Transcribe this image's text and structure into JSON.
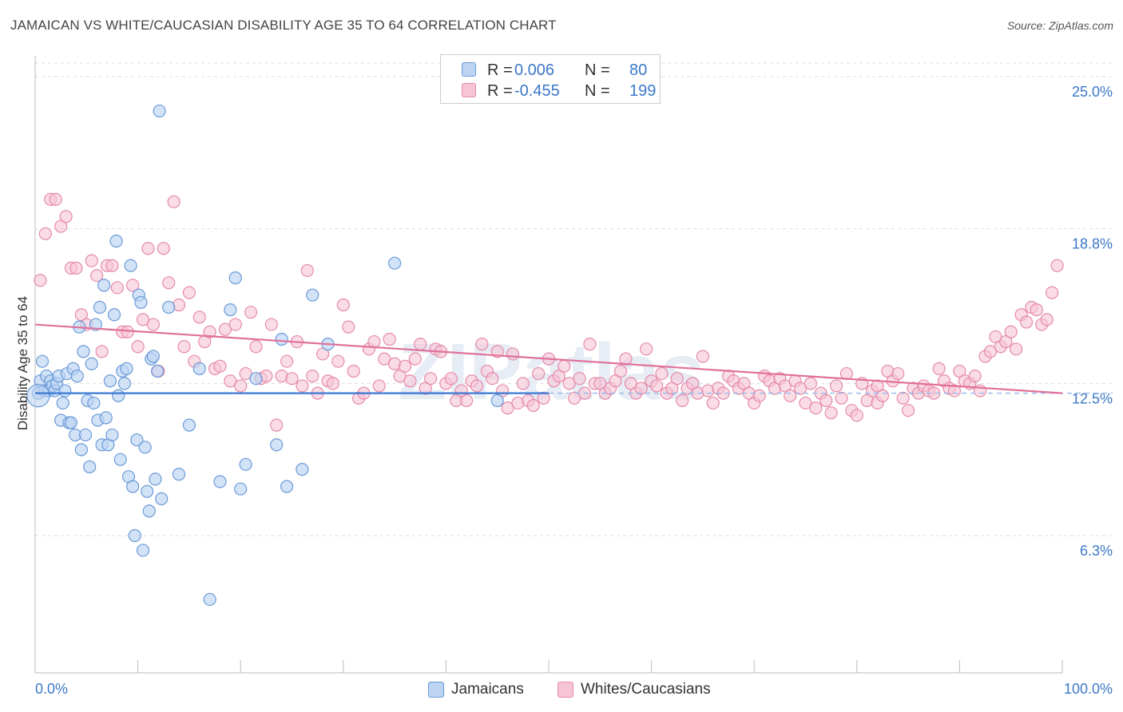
{
  "title": "JAMAICAN VS WHITE/CAUCASIAN DISABILITY AGE 35 TO 64 CORRELATION CHART",
  "source": "Source: ZipAtlas.com",
  "watermark": "ZIPatlas",
  "legend_top": {
    "rows": [
      {
        "r_label": "R =",
        "r_value": "0.006",
        "n_label": "N =",
        "n_value": "80"
      },
      {
        "r_label": "R =",
        "r_value": "-0.455",
        "n_label": "N =",
        "n_value": "199"
      }
    ]
  },
  "legend_bottom": {
    "items": [
      {
        "label": "Jamaicans"
      },
      {
        "label": "Whites/Caucasians"
      }
    ]
  },
  "colors": {
    "blue_fill": "#bcd4f2",
    "blue_stroke": "#6a9ad8",
    "blue_line": "#3a78d4",
    "pink_fill": "#f7c4d6",
    "pink_stroke": "#e58aab",
    "pink_line": "#e0709a",
    "tick_label": "#3b78c8",
    "grid": "#dddddd"
  },
  "chart_data": {
    "type": "scatter",
    "title": "JAMAICAN VS WHITE/CAUCASIAN DISABILITY AGE 35 TO 64 CORRELATION CHART",
    "xlabel": "",
    "ylabel": "Disability Age 35 to 64",
    "xlim": [
      0,
      100
    ],
    "ylim": [
      0,
      25.6
    ],
    "x_tick_labels": [
      "0.0%",
      "100.0%"
    ],
    "y_ticks": [
      6.3,
      12.5,
      18.8,
      25.0
    ],
    "y_tick_labels": [
      "6.3%",
      "12.5%",
      "18.8%",
      "25.0%"
    ],
    "grid": "horizontal dashed",
    "legend_placement": "top-center and bottom",
    "series": [
      {
        "name": "Jamaicans",
        "r": 0.006,
        "n": 80,
        "trend": {
          "x": [
            0,
            50
          ],
          "y": [
            12.1,
            12.1
          ]
        },
        "points": [
          [
            0.3,
            12.1
          ],
          [
            0.5,
            12.6
          ],
          [
            0.7,
            13.4
          ],
          [
            0.9,
            12.2
          ],
          [
            1.1,
            12.8
          ],
          [
            1.3,
            12.2
          ],
          [
            1.5,
            12.6
          ],
          [
            1.7,
            12.4
          ],
          [
            1.9,
            12.2
          ],
          [
            2.1,
            12.5
          ],
          [
            2.3,
            12.8
          ],
          [
            2.5,
            11.0
          ],
          [
            2.7,
            11.7
          ],
          [
            2.9,
            12.2
          ],
          [
            3.1,
            12.9
          ],
          [
            3.3,
            10.9
          ],
          [
            3.5,
            10.9
          ],
          [
            3.7,
            13.1
          ],
          [
            3.9,
            10.4
          ],
          [
            4.1,
            12.8
          ],
          [
            4.3,
            14.8
          ],
          [
            4.5,
            9.8
          ],
          [
            4.7,
            13.8
          ],
          [
            4.9,
            10.4
          ],
          [
            5.1,
            11.8
          ],
          [
            5.3,
            9.1
          ],
          [
            5.5,
            13.3
          ],
          [
            5.7,
            11.7
          ],
          [
            5.9,
            14.9
          ],
          [
            6.1,
            11.0
          ],
          [
            6.3,
            15.6
          ],
          [
            6.5,
            10.0
          ],
          [
            6.7,
            16.5
          ],
          [
            6.9,
            11.1
          ],
          [
            7.1,
            10.0
          ],
          [
            7.3,
            12.6
          ],
          [
            7.5,
            10.4
          ],
          [
            7.7,
            15.3
          ],
          [
            7.9,
            18.3
          ],
          [
            8.1,
            12.0
          ],
          [
            8.3,
            9.4
          ],
          [
            8.5,
            13.0
          ],
          [
            8.7,
            12.5
          ],
          [
            8.9,
            13.1
          ],
          [
            9.1,
            8.7
          ],
          [
            9.3,
            17.3
          ],
          [
            9.5,
            8.3
          ],
          [
            9.7,
            6.3
          ],
          [
            9.9,
            10.2
          ],
          [
            10.1,
            16.1
          ],
          [
            10.3,
            15.8
          ],
          [
            10.5,
            5.7
          ],
          [
            10.7,
            9.9
          ],
          [
            10.9,
            8.1
          ],
          [
            11.1,
            7.3
          ],
          [
            11.3,
            13.5
          ],
          [
            11.5,
            13.6
          ],
          [
            11.7,
            8.6
          ],
          [
            11.9,
            13.0
          ],
          [
            12.1,
            23.6
          ],
          [
            12.3,
            7.8
          ],
          [
            13.0,
            15.6
          ],
          [
            14.0,
            8.8
          ],
          [
            15.0,
            10.8
          ],
          [
            16.0,
            13.1
          ],
          [
            17.0,
            3.7
          ],
          [
            18.0,
            8.5
          ],
          [
            19.0,
            15.5
          ],
          [
            19.5,
            16.8
          ],
          [
            20.0,
            8.2
          ],
          [
            20.5,
            9.2
          ],
          [
            21.5,
            12.7
          ],
          [
            23.5,
            10.0
          ],
          [
            24.0,
            14.3
          ],
          [
            24.5,
            8.3
          ],
          [
            27.0,
            16.1
          ],
          [
            28.5,
            14.1
          ],
          [
            35.0,
            17.4
          ],
          [
            45.0,
            11.8
          ],
          [
            26.0,
            9.0
          ]
        ]
      },
      {
        "name": "Whites/Caucasians",
        "r": -0.455,
        "n": 199,
        "trend": {
          "x": [
            0,
            100
          ],
          "y": [
            14.9,
            12.1
          ]
        },
        "points": [
          [
            0.5,
            16.7
          ],
          [
            1.0,
            18.6
          ],
          [
            1.5,
            20.0
          ],
          [
            2.0,
            20.0
          ],
          [
            2.5,
            18.9
          ],
          [
            3.0,
            19.3
          ],
          [
            3.5,
            17.2
          ],
          [
            4.0,
            17.2
          ],
          [
            4.5,
            15.3
          ],
          [
            5.0,
            14.9
          ],
          [
            5.5,
            17.5
          ],
          [
            6.0,
            16.9
          ],
          [
            6.5,
            13.8
          ],
          [
            7.0,
            17.3
          ],
          [
            7.5,
            17.3
          ],
          [
            8.0,
            16.4
          ],
          [
            8.5,
            14.6
          ],
          [
            9.0,
            14.6
          ],
          [
            9.5,
            16.5
          ],
          [
            10.0,
            14.0
          ],
          [
            10.5,
            15.1
          ],
          [
            11.0,
            18.0
          ],
          [
            11.5,
            14.9
          ],
          [
            12.0,
            13.0
          ],
          [
            12.5,
            18.0
          ],
          [
            13.0,
            16.6
          ],
          [
            13.5,
            19.9
          ],
          [
            14.0,
            15.7
          ],
          [
            14.5,
            14.0
          ],
          [
            15.0,
            16.2
          ],
          [
            15.5,
            13.4
          ],
          [
            16.0,
            15.2
          ],
          [
            16.5,
            14.2
          ],
          [
            17.0,
            14.6
          ],
          [
            17.5,
            13.1
          ],
          [
            18.0,
            13.2
          ],
          [
            18.5,
            14.7
          ],
          [
            19.0,
            12.6
          ],
          [
            19.5,
            14.9
          ],
          [
            20.0,
            12.4
          ],
          [
            20.5,
            12.9
          ],
          [
            21.0,
            15.4
          ],
          [
            21.5,
            14.0
          ],
          [
            22.0,
            12.7
          ],
          [
            22.5,
            12.8
          ],
          [
            23.0,
            14.9
          ],
          [
            23.5,
            10.8
          ],
          [
            24.0,
            12.8
          ],
          [
            24.5,
            13.4
          ],
          [
            25.0,
            12.7
          ],
          [
            25.5,
            14.2
          ],
          [
            26.0,
            12.4
          ],
          [
            26.5,
            17.1
          ],
          [
            27.0,
            12.8
          ],
          [
            27.5,
            12.1
          ],
          [
            28.0,
            13.7
          ],
          [
            28.5,
            12.6
          ],
          [
            29.0,
            12.5
          ],
          [
            29.5,
            13.4
          ],
          [
            30.0,
            15.7
          ],
          [
            30.5,
            14.8
          ],
          [
            31.0,
            13.0
          ],
          [
            31.5,
            11.9
          ],
          [
            32.0,
            12.1
          ],
          [
            32.5,
            13.9
          ],
          [
            33.0,
            14.2
          ],
          [
            33.5,
            12.4
          ],
          [
            34.0,
            13.5
          ],
          [
            34.5,
            14.3
          ],
          [
            35.0,
            13.3
          ],
          [
            35.5,
            12.8
          ],
          [
            36.0,
            13.2
          ],
          [
            36.5,
            12.6
          ],
          [
            37.0,
            13.5
          ],
          [
            37.5,
            14.1
          ],
          [
            38.0,
            12.3
          ],
          [
            38.5,
            12.7
          ],
          [
            39.0,
            13.9
          ],
          [
            39.5,
            13.8
          ],
          [
            40.0,
            12.5
          ],
          [
            40.5,
            12.7
          ],
          [
            41.0,
            11.8
          ],
          [
            41.5,
            12.2
          ],
          [
            42.0,
            11.8
          ],
          [
            42.5,
            12.6
          ],
          [
            43.0,
            12.4
          ],
          [
            43.5,
            14.1
          ],
          [
            44.0,
            13.0
          ],
          [
            44.5,
            12.7
          ],
          [
            45.0,
            13.8
          ],
          [
            45.5,
            12.2
          ],
          [
            46.0,
            11.5
          ],
          [
            46.5,
            13.7
          ],
          [
            47.0,
            11.7
          ],
          [
            47.5,
            12.5
          ],
          [
            48.0,
            11.8
          ],
          [
            48.5,
            11.6
          ],
          [
            49.0,
            12.9
          ],
          [
            49.5,
            11.9
          ],
          [
            50.0,
            13.5
          ],
          [
            50.5,
            12.6
          ],
          [
            51.0,
            12.8
          ],
          [
            51.5,
            13.2
          ],
          [
            52.0,
            12.5
          ],
          [
            52.5,
            11.9
          ],
          [
            53.0,
            12.7
          ],
          [
            53.5,
            12.1
          ],
          [
            54.0,
            14.1
          ],
          [
            54.5,
            12.5
          ],
          [
            55.0,
            12.5
          ],
          [
            55.5,
            12.1
          ],
          [
            56.0,
            12.3
          ],
          [
            56.5,
            12.6
          ],
          [
            57.0,
            13.0
          ],
          [
            57.5,
            13.5
          ],
          [
            58.0,
            12.5
          ],
          [
            58.5,
            12.1
          ],
          [
            59.0,
            12.3
          ],
          [
            59.5,
            13.9
          ],
          [
            60.0,
            12.6
          ],
          [
            60.5,
            12.4
          ],
          [
            61.0,
            12.9
          ],
          [
            61.5,
            12.1
          ],
          [
            62.0,
            12.3
          ],
          [
            62.5,
            12.7
          ],
          [
            63.0,
            11.8
          ],
          [
            63.5,
            12.3
          ],
          [
            64.0,
            12.5
          ],
          [
            64.5,
            12.1
          ],
          [
            65.0,
            13.6
          ],
          [
            65.5,
            12.2
          ],
          [
            66.0,
            11.7
          ],
          [
            66.5,
            12.3
          ],
          [
            67.0,
            12.1
          ],
          [
            67.5,
            12.8
          ],
          [
            68.0,
            12.6
          ],
          [
            68.5,
            12.3
          ],
          [
            69.0,
            12.5
          ],
          [
            69.5,
            12.1
          ],
          [
            70.0,
            11.7
          ],
          [
            70.5,
            12.0
          ],
          [
            71.0,
            12.8
          ],
          [
            71.5,
            12.6
          ],
          [
            72.0,
            12.3
          ],
          [
            72.5,
            12.7
          ],
          [
            73.0,
            12.4
          ],
          [
            73.5,
            12.0
          ],
          [
            74.0,
            12.6
          ],
          [
            74.5,
            12.3
          ],
          [
            75.0,
            11.7
          ],
          [
            75.5,
            12.5
          ],
          [
            76.0,
            11.5
          ],
          [
            76.5,
            12.1
          ],
          [
            77.0,
            11.8
          ],
          [
            77.5,
            11.3
          ],
          [
            78.0,
            12.4
          ],
          [
            78.5,
            11.9
          ],
          [
            79.0,
            12.9
          ],
          [
            79.5,
            11.4
          ],
          [
            80.0,
            11.2
          ],
          [
            80.5,
            12.5
          ],
          [
            81.0,
            11.8
          ],
          [
            81.5,
            12.2
          ],
          [
            82.0,
            11.7
          ],
          [
            82.5,
            12.0
          ],
          [
            83.0,
            13.0
          ],
          [
            83.5,
            12.6
          ],
          [
            84.0,
            12.9
          ],
          [
            84.5,
            11.9
          ],
          [
            85.0,
            11.4
          ],
          [
            85.5,
            12.3
          ],
          [
            86.0,
            12.1
          ],
          [
            86.5,
            12.4
          ],
          [
            87.0,
            12.2
          ],
          [
            87.5,
            12.1
          ],
          [
            88.0,
            13.1
          ],
          [
            88.5,
            12.6
          ],
          [
            89.0,
            12.3
          ],
          [
            89.5,
            12.2
          ],
          [
            90.0,
            13.0
          ],
          [
            90.5,
            12.6
          ],
          [
            91.0,
            12.5
          ],
          [
            91.5,
            12.8
          ],
          [
            92.0,
            12.2
          ],
          [
            92.5,
            13.6
          ],
          [
            93.0,
            13.8
          ],
          [
            93.5,
            14.4
          ],
          [
            94.0,
            14.0
          ],
          [
            94.5,
            14.2
          ],
          [
            95.0,
            14.6
          ],
          [
            95.5,
            13.9
          ],
          [
            96.0,
            15.3
          ],
          [
            96.5,
            15.0
          ],
          [
            97.0,
            15.6
          ],
          [
            97.5,
            15.5
          ],
          [
            98.0,
            14.9
          ],
          [
            98.5,
            15.1
          ],
          [
            99.0,
            16.2
          ],
          [
            99.5,
            17.3
          ],
          [
            82.0,
            12.4
          ]
        ]
      }
    ]
  }
}
